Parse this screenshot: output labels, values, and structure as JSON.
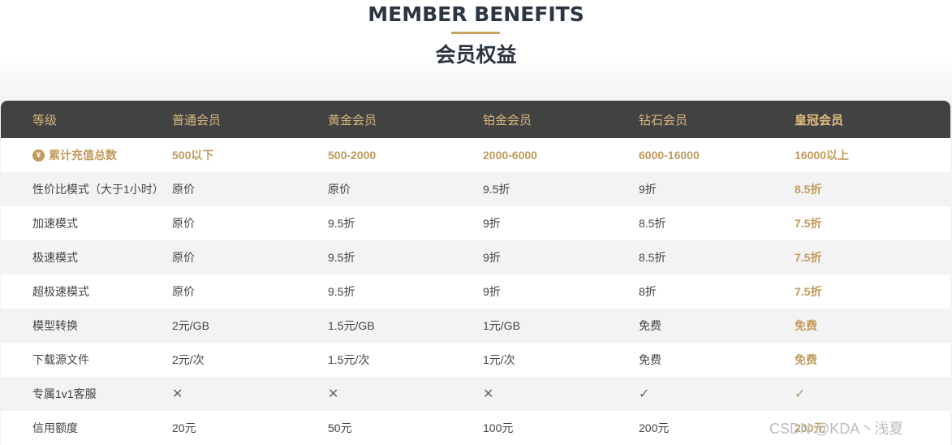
{
  "header": {
    "title_en": "MEMBER BENEFITS",
    "title_cn": "会员权益"
  },
  "colors": {
    "accent_gold": "#c29b5c",
    "header_bg": "#424242"
  },
  "table": {
    "columns": [
      "等级",
      "普通会员",
      "黄金会员",
      "铂金会员",
      "钻石会员",
      "皇冠会员"
    ],
    "spend_row": {
      "icon": "yen-coin-icon",
      "coin_symbol": "¥",
      "label": "累计充值总数",
      "values": [
        "500以下",
        "500-2000",
        "2000-6000",
        "6000-16000",
        "16000以上"
      ]
    },
    "rows": [
      {
        "label": "性价比模式（大于1小时）",
        "values": [
          "原价",
          "原价",
          "9.5折",
          "9折",
          "8.5折"
        ]
      },
      {
        "label": "加速模式",
        "values": [
          "原价",
          "9.5折",
          "9折",
          "8.5折",
          "7.5折"
        ]
      },
      {
        "label": "极速模式",
        "values": [
          "原价",
          "9.5折",
          "9折",
          "8.5折",
          "7.5折"
        ]
      },
      {
        "label": "超极速模式",
        "values": [
          "原价",
          "9.5折",
          "9折",
          "8折",
          "7.5折"
        ]
      },
      {
        "label": "模型转换",
        "values": [
          "2元/GB",
          "1.5元/GB",
          "1元/GB",
          "免费",
          "免费"
        ]
      },
      {
        "label": "下载源文件",
        "values": [
          "2元/次",
          "1.5元/次",
          "1元/次",
          "免费",
          "免费"
        ]
      },
      {
        "label": "专属1v1客服",
        "values": [
          "✕",
          "✕",
          "✕",
          "✓",
          "✓"
        ]
      },
      {
        "label": "信用额度",
        "values": [
          "20元",
          "50元",
          "100元",
          "200元",
          "200元"
        ]
      }
    ]
  },
  "watermark": "CSDN @KDA丶浅夏"
}
